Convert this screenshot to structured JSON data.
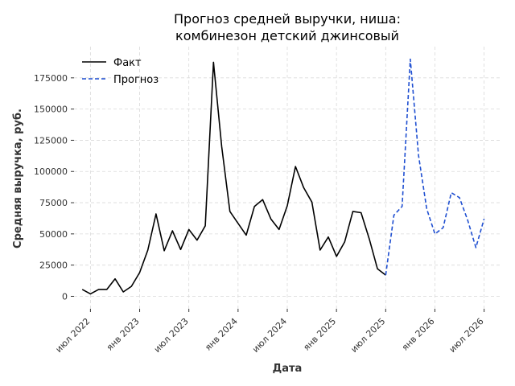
{
  "chart_data": {
    "type": "line",
    "title_lines": [
      "Прогноз средней выручки, ниша:",
      "комбинезон детский джинсовый"
    ],
    "xlabel": "Дата",
    "ylabel": "Средняя выручка, руб.",
    "grid": true,
    "legend_position": "top-left",
    "x_ticks": [
      {
        "date": "2022-07-01",
        "label": "июл 2022"
      },
      {
        "date": "2023-01-01",
        "label": "янв 2023"
      },
      {
        "date": "2023-07-01",
        "label": "июл 2023"
      },
      {
        "date": "2024-01-01",
        "label": "янв 2024"
      },
      {
        "date": "2024-07-01",
        "label": "июл 2024"
      },
      {
        "date": "2025-01-01",
        "label": "янв 2025"
      },
      {
        "date": "2025-07-01",
        "label": "июл 2025"
      },
      {
        "date": "2026-01-01",
        "label": "янв 2026"
      },
      {
        "date": "2026-07-01",
        "label": "июл 2026"
      }
    ],
    "y_ticks": [
      {
        "value": 0,
        "label": "0"
      },
      {
        "value": 25000,
        "label": "25000"
      },
      {
        "value": 50000,
        "label": "50000"
      },
      {
        "value": 75000,
        "label": "75000"
      },
      {
        "value": 100000,
        "label": "100000"
      },
      {
        "value": 125000,
        "label": "125000"
      },
      {
        "value": 150000,
        "label": "150000"
      },
      {
        "value": 175000,
        "label": "175000"
      }
    ],
    "xlim": [
      "2022-05-01",
      "2026-09-01"
    ],
    "ylim": [
      -10000,
      200000
    ],
    "series": [
      {
        "name": "Факт",
        "color": "#000000",
        "style": "solid",
        "x": [
          "2022-06-01",
          "2022-07-01",
          "2022-08-01",
          "2022-09-01",
          "2022-10-01",
          "2022-11-01",
          "2022-12-01",
          "2023-01-01",
          "2023-02-01",
          "2023-03-01",
          "2023-04-01",
          "2023-05-01",
          "2023-06-01",
          "2023-07-01",
          "2023-08-01",
          "2023-09-01",
          "2023-10-01",
          "2023-11-01",
          "2023-12-01",
          "2024-01-01",
          "2024-02-01",
          "2024-03-01",
          "2024-04-01",
          "2024-05-01",
          "2024-06-01",
          "2024-07-01",
          "2024-08-01",
          "2024-09-01",
          "2024-10-01",
          "2024-11-01",
          "2024-12-01",
          "2025-01-01",
          "2025-02-01",
          "2025-03-01",
          "2025-04-01",
          "2025-05-01",
          "2025-06-01",
          "2025-07-01"
        ],
        "y": [
          5500,
          2000,
          5500,
          5500,
          14000,
          3500,
          8000,
          19000,
          37000,
          66000,
          36500,
          52500,
          37500,
          53500,
          45000,
          56500,
          187500,
          120000,
          68000,
          58500,
          49000,
          72000,
          77500,
          62000,
          53500,
          72500,
          104000,
          87000,
          75500,
          37000,
          47500,
          32000,
          43500,
          68000,
          67000,
          46000,
          22000,
          17000
        ]
      },
      {
        "name": "Прогноз",
        "color": "#1f4fd1",
        "style": "dashed",
        "x": [
          "2025-07-01",
          "2025-08-01",
          "2025-09-01",
          "2025-10-01",
          "2025-11-01",
          "2025-12-01",
          "2026-01-01",
          "2026-02-01",
          "2026-03-01",
          "2026-04-01",
          "2026-05-01",
          "2026-06-01",
          "2026-07-01"
        ],
        "y": [
          17000,
          65000,
          72000,
          190000,
          113000,
          70000,
          50000,
          55000,
          83000,
          79000,
          61000,
          39000,
          62000
        ]
      }
    ]
  }
}
